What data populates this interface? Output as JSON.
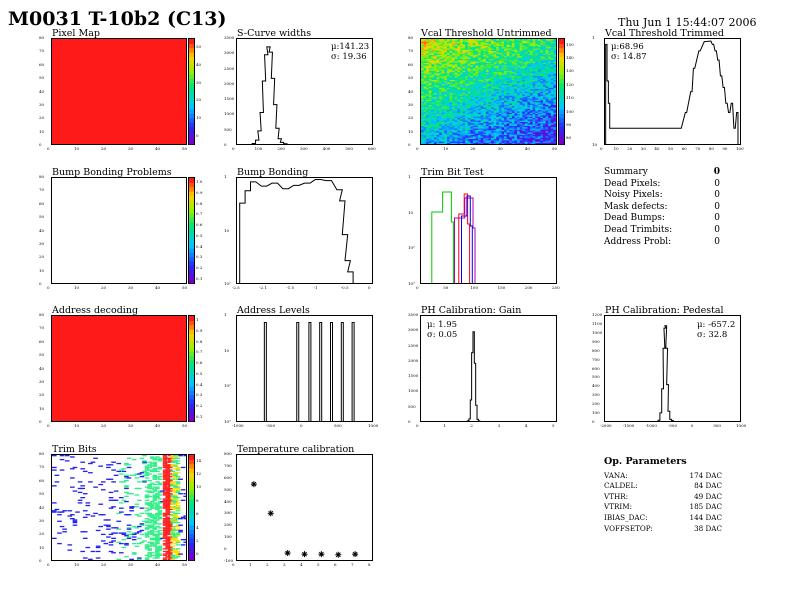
{
  "header": {
    "title": "M0031 T-10b2 (C13)",
    "date": "Thu Jun  1 15:44:07 2006"
  },
  "panels": {
    "pixel_map": {
      "title": "Pixel Map"
    },
    "scurve_widths": {
      "title": "S-Curve widths",
      "mu": "μ:141.23",
      "sigma": "σ: 19.36"
    },
    "vcal_untrimmed": {
      "title": "Vcal Threshold Untrimmed"
    },
    "vcal_trimmed": {
      "title": "Vcal Threshold Trimmed",
      "mu": "μ:68.96",
      "sigma": "σ: 14.87"
    },
    "bump_problems": {
      "title": "Bump Bonding Problems"
    },
    "bump_bonding": {
      "title": "Bump Bonding"
    },
    "trim_bit_test": {
      "title": "Trim Bit Test"
    },
    "address_decoding": {
      "title": "Address decoding"
    },
    "address_levels": {
      "title": "Address Levels"
    },
    "ph_gain": {
      "title": "PH Calibration: Gain",
      "mu": "μ: 1.95",
      "sigma": "σ: 0.05"
    },
    "ph_pedestal": {
      "title": "PH Calibration: Pedestal",
      "mu": "μ: -657.2",
      "sigma": "σ: 32.8"
    },
    "trim_bits": {
      "title": "Trim Bits"
    },
    "temperature": {
      "title": "Temperature calibration"
    }
  },
  "summary": {
    "title": "Summary",
    "total": "0",
    "rows": [
      {
        "label": "Dead Pixels:",
        "value": "0"
      },
      {
        "label": "Noisy Pixels:",
        "value": "0"
      },
      {
        "label": "Mask defects:",
        "value": "0"
      },
      {
        "label": "Dead Bumps:",
        "value": "0"
      },
      {
        "label": "Dead Trimbits:",
        "value": "0"
      },
      {
        "label": "Address Probl:",
        "value": "0"
      }
    ]
  },
  "op_params": {
    "title": "Op. Parameters",
    "rows": [
      {
        "label": "VANA:",
        "value": "174 DAC"
      },
      {
        "label": "CALDEL:",
        "value": "84 DAC"
      },
      {
        "label": "VTHR:",
        "value": "49 DAC"
      },
      {
        "label": "VTRIM:",
        "value": "185 DAC"
      },
      {
        "label": "IBIAS_DAC:",
        "value": "144 DAC"
      },
      {
        "label": "VOFFSETOP:",
        "value": "38 DAC"
      }
    ]
  },
  "colors": {
    "red": "#ff1a1a",
    "frame": "#000000"
  },
  "chart_data": [
    {
      "id": "pixel_map",
      "type": "heatmap",
      "title": "Pixel Map",
      "xlim": [
        0,
        52
      ],
      "ylim": [
        0,
        80
      ],
      "fill": "uniform-max",
      "xticks": [
        "0",
        "10",
        "20",
        "30",
        "40",
        "50"
      ],
      "yticks": [
        "0",
        "10",
        "20",
        "30",
        "40",
        "50",
        "60",
        "70",
        "80"
      ],
      "zticks": [
        "0",
        "10",
        "20",
        "30",
        "40",
        "50"
      ]
    },
    {
      "id": "scurve_widths",
      "type": "histogram",
      "title": "S-Curve widths",
      "xlim": [
        0,
        600
      ],
      "ylim": [
        0,
        4000
      ],
      "xticks": [
        "0",
        "100",
        "200",
        "300",
        "400",
        "500",
        "600"
      ],
      "yticks": [
        "0",
        "500",
        "1000",
        "1500",
        "2000",
        "2500",
        "3000",
        "3500"
      ],
      "x": [
        75,
        90,
        100,
        110,
        120,
        130,
        140,
        150,
        160,
        170,
        180,
        190,
        200,
        215
      ],
      "y": [
        20,
        150,
        500,
        1200,
        2400,
        3400,
        3700,
        3500,
        2500,
        1500,
        600,
        200,
        60,
        10
      ]
    },
    {
      "id": "vcal_untrimmed",
      "type": "heatmap",
      "title": "Vcal Threshold Untrimmed",
      "xlim": [
        0,
        52
      ],
      "ylim": [
        0,
        80
      ],
      "xticks": [
        "0",
        "10",
        "20",
        "30",
        "40",
        "50"
      ],
      "yticks": [
        "0",
        "10",
        "20",
        "30",
        "40",
        "50",
        "60",
        "70",
        "80"
      ],
      "zticks": [
        "80",
        "90",
        "100",
        "110",
        "120",
        "130",
        "140",
        "150"
      ]
    },
    {
      "id": "vcal_trimmed",
      "type": "histogram",
      "title": "Vcal Threshold Trimmed",
      "log": true,
      "xlim": [
        0,
        100
      ],
      "xticks": [
        "0",
        "10",
        "20",
        "30",
        "40",
        "50",
        "60",
        "70",
        "80",
        "90",
        "100"
      ],
      "yticks": [
        "10",
        "1"
      ],
      "x": [
        1,
        2,
        3,
        4,
        5,
        6,
        8,
        10,
        22,
        27,
        35,
        44,
        49,
        56,
        60,
        64,
        66,
        70,
        74,
        78,
        80,
        82,
        84,
        86,
        88,
        90,
        92,
        94,
        96,
        98
      ],
      "y": [
        40,
        8,
        3,
        1,
        1,
        1,
        1,
        1,
        1,
        1,
        1,
        1,
        1,
        1,
        2,
        5,
        14,
        30,
        45,
        46,
        40,
        30,
        20,
        10,
        6,
        3,
        2,
        3,
        1,
        2
      ]
    },
    {
      "id": "bump_problems",
      "type": "heatmap",
      "title": "Bump Bonding Problems",
      "xlim": [
        0,
        52
      ],
      "ylim": [
        0,
        80
      ],
      "fill": "empty",
      "xticks": [
        "0",
        "10",
        "20",
        "30",
        "40",
        "50"
      ],
      "yticks": [
        "0",
        "10",
        "20",
        "30",
        "40",
        "50",
        "60",
        "70",
        "80"
      ],
      "zticks": [
        "0.1",
        "0.2",
        "0.3",
        "0.4",
        "0.5",
        "0.6",
        "0.7",
        "0.8",
        "0.9",
        "1.0"
      ]
    },
    {
      "id": "bump_bonding",
      "type": "histogram",
      "title": "Bump Bonding",
      "log": true,
      "xlim": [
        -2.5,
        0
      ],
      "xticks": [
        "-2.5",
        "-2.1",
        "-1.5",
        "-1",
        "-0.5",
        "0"
      ],
      "yticks": [
        "10²",
        "10",
        "1"
      ],
      "x": [
        -2.4,
        -2.3,
        -2.2,
        -2.0,
        -1.8,
        -1.6,
        -1.4,
        -1.2,
        -1.0,
        -0.8,
        -0.6,
        -0.55,
        -0.5,
        -0.45,
        -0.4
      ],
      "y": [
        70,
        150,
        260,
        200,
        240,
        170,
        210,
        240,
        300,
        280,
        160,
        80,
        10,
        2,
        1
      ]
    },
    {
      "id": "trim_bit_test",
      "type": "histogram",
      "title": "Trim Bit Test",
      "log": true,
      "xlim": [
        0,
        250
      ],
      "xticks": [
        "0",
        "50",
        "100",
        "150",
        "200",
        "250"
      ],
      "yticks": [
        "10³",
        "10²",
        "10",
        "1"
      ],
      "series": [
        {
          "name": "",
          "color": "#00cc00",
          "x": [
            20,
            60
          ]
        },
        {
          "name": "",
          "color": "#ff0000",
          "x": [
            70,
            90
          ]
        },
        {
          "name": "",
          "color": "#0000ff",
          "x": [
            75,
            95
          ]
        },
        {
          "name": "",
          "color": "#aa00aa",
          "x": [
            62,
            100
          ]
        }
      ]
    },
    {
      "id": "address_decoding",
      "type": "heatmap",
      "title": "Address decoding",
      "xlim": [
        0,
        52
      ],
      "ylim": [
        0,
        80
      ],
      "fill": "uniform-max",
      "xticks": [
        "0",
        "10",
        "20",
        "30",
        "40",
        "50"
      ],
      "yticks": [
        "0",
        "10",
        "20",
        "30",
        "40",
        "50",
        "60",
        "70",
        "80"
      ],
      "zticks": [
        "0.1",
        "0.2",
        "0.3",
        "0.4",
        "0.5",
        "0.6",
        "0.7",
        "0.8",
        "0.9",
        "1"
      ]
    },
    {
      "id": "address_levels",
      "type": "histogram",
      "title": "Address Levels",
      "log": true,
      "xlim": [
        -1000,
        1000
      ],
      "xticks": [
        "-1000",
        "-500",
        "0",
        "500",
        "1000"
      ],
      "yticks": [
        "10³",
        "10²",
        "10",
        "1"
      ],
      "peaks": [
        -580,
        -100,
        80,
        240,
        400,
        560,
        720
      ],
      "peak_height": 1200
    },
    {
      "id": "ph_gain",
      "type": "histogram",
      "title": "PH Calibration: Gain",
      "xlim": [
        0,
        5
      ],
      "ylim": [
        0,
        4000
      ],
      "xticks": [
        "0",
        "1",
        "2",
        "3",
        "4",
        "5"
      ],
      "yticks": [
        "0",
        "500",
        "1000",
        "1500",
        "2000",
        "2500",
        "3000",
        "3500"
      ],
      "x": [
        1.75,
        1.8,
        1.85,
        1.9,
        1.95,
        2.0,
        2.05,
        2.1,
        2.15
      ],
      "y": [
        10,
        80,
        800,
        2600,
        3400,
        2200,
        600,
        60,
        5
      ]
    },
    {
      "id": "ph_pedestal",
      "type": "histogram",
      "title": "PH Calibration: Pedestal",
      "xlim": [
        -2000,
        1000
      ],
      "ylim": [
        0,
        1300
      ],
      "xticks": [
        "-2000",
        "-1500",
        "-1000",
        "-500",
        "0",
        "500",
        "1000"
      ],
      "yticks": [
        "0",
        "100",
        "200",
        "300",
        "400",
        "500",
        "600",
        "700",
        "800",
        "900",
        "1000",
        "1100",
        "1200"
      ],
      "x": [
        -800,
        -760,
        -720,
        -690,
        -670,
        -650,
        -630,
        -610,
        -580,
        -540,
        -500
      ],
      "y": [
        10,
        100,
        400,
        900,
        1150,
        1180,
        900,
        450,
        120,
        20,
        5
      ]
    },
    {
      "id": "trim_bits",
      "type": "heatmap",
      "title": "Trim Bits",
      "xlim": [
        0,
        52
      ],
      "ylim": [
        0,
        80
      ],
      "fill": "sparse",
      "xticks": [
        "0",
        "10",
        "20",
        "30",
        "40",
        "50"
      ],
      "yticks": [
        "0",
        "10",
        "20",
        "30",
        "40",
        "50",
        "60",
        "70",
        "80"
      ],
      "zticks": [
        "0",
        "2",
        "4",
        "6",
        "8",
        "10",
        "12",
        "14"
      ]
    },
    {
      "id": "temperature",
      "type": "scatter",
      "title": "Temperature calibration",
      "xlim": [
        0,
        8
      ],
      "ylim": [
        -100,
        800
      ],
      "xticks": [
        "0",
        "1",
        "2",
        "3",
        "4",
        "5",
        "6",
        "7",
        "8"
      ],
      "yticks": [
        "-100",
        "0",
        "100",
        "200",
        "300",
        "400",
        "500",
        "600",
        "700",
        "800"
      ],
      "x": [
        1,
        2,
        3,
        4,
        5,
        6,
        7
      ],
      "y": [
        550,
        300,
        -40,
        -50,
        -50,
        -55,
        -50
      ]
    }
  ]
}
